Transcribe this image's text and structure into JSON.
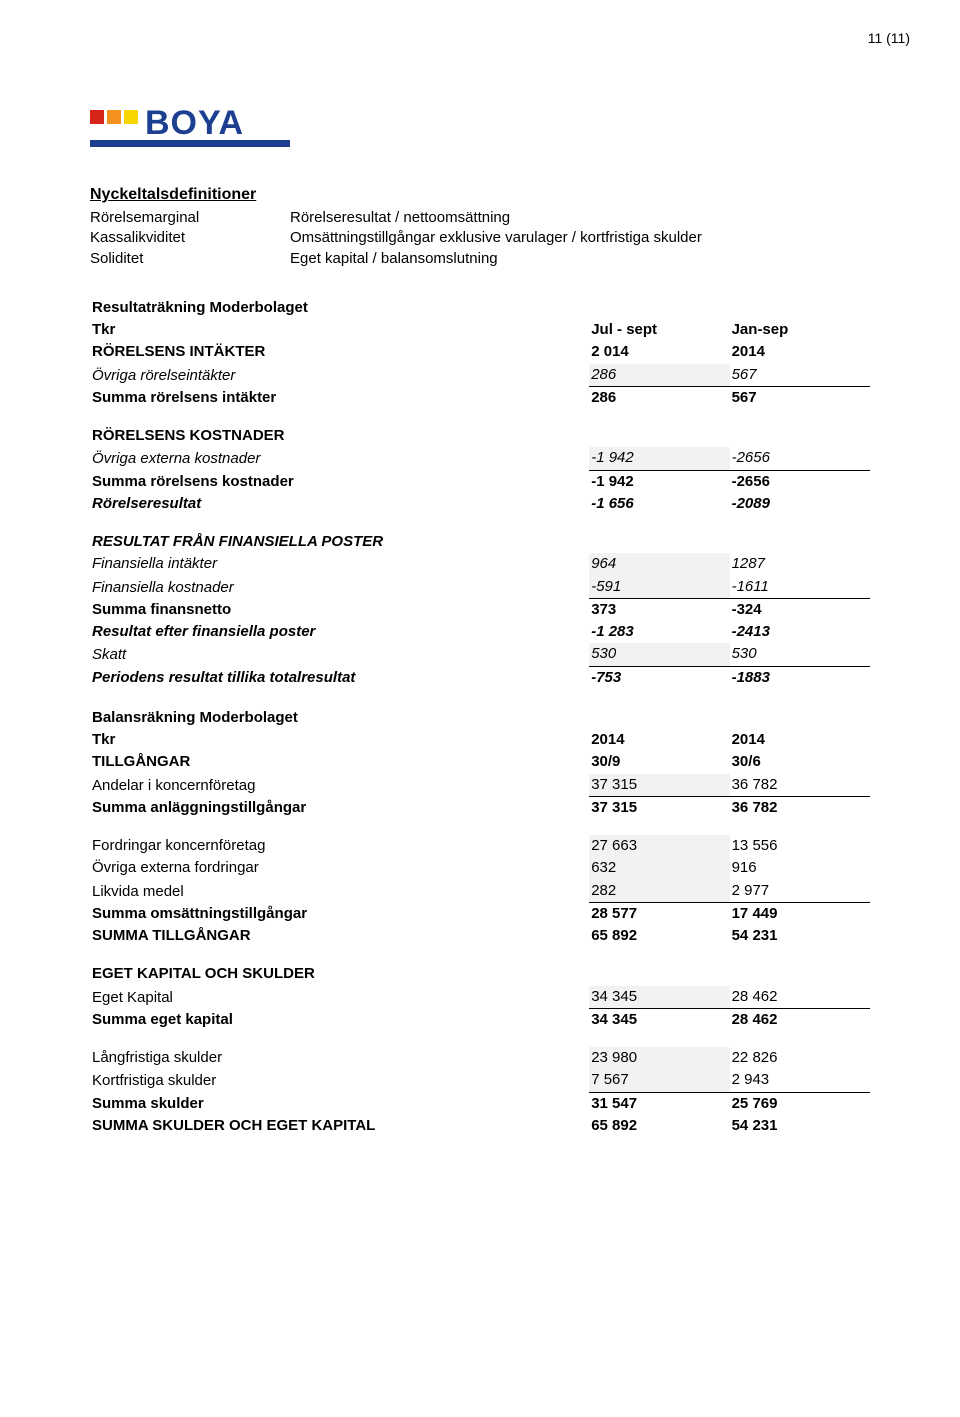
{
  "page_number": "11 (11)",
  "logo_colors": {
    "red": "#d62418",
    "orange": "#f5911e",
    "yellow": "#f8d400",
    "blue": "#1c3f8f"
  },
  "definitions": {
    "title": "Nyckeltalsdefinitioner",
    "rows": [
      {
        "label": "Rörelsemarginal",
        "value": "Rörelseresultat / nettoomsättning"
      },
      {
        "label": "Kassalikviditet",
        "value": "Omsättningstillgångar exklusive varulager / kortfristiga skulder"
      },
      {
        "label": "Soliditet",
        "value": "Eget kapital / balansomslutning"
      }
    ]
  },
  "income": {
    "header_title": "Resultaträkning Moderbolaget",
    "tkr": "Tkr",
    "col1": "Jul - sept",
    "col2": "Jan-sep",
    "rows": [
      {
        "label": "RÖRELSENS INTÄKTER",
        "v1": "2 014",
        "v2": "2014",
        "bold": true
      },
      {
        "label": "Övriga rörelseintäkter",
        "v1": "286",
        "v2": "567",
        "italic": true,
        "hl1": true,
        "uline1": true,
        "uline2": true
      },
      {
        "label": "Summa rörelsens intäkter",
        "v1": "286",
        "v2": "567",
        "bold": true
      },
      {
        "spacer": true
      },
      {
        "label": "RÖRELSENS KOSTNADER",
        "v1": "",
        "v2": "",
        "bold": true
      },
      {
        "label": "Övriga externa kostnader",
        "v1": "-1 942",
        "v2": "-2656",
        "italic": true,
        "hl1": true,
        "uline1": true,
        "uline2": true
      },
      {
        "label": "Summa rörelsens kostnader",
        "v1": "-1 942",
        "v2": "-2656",
        "bold": true
      },
      {
        "label": "Rörelseresultat",
        "v1": "-1 656",
        "v2": "-2089",
        "bold": true,
        "italic": true
      },
      {
        "spacer": true
      },
      {
        "label": "RESULTAT FRÅN FINANSIELLA POSTER",
        "v1": "",
        "v2": "",
        "bold": true,
        "italic": true
      },
      {
        "label": "Finansiella intäkter",
        "v1": "964",
        "v2": "1287",
        "italic": true,
        "hl1": true
      },
      {
        "label": "Finansiella kostnader",
        "v1": "-591",
        "v2": "-1611",
        "italic": true,
        "hl1": true,
        "uline1": true,
        "uline2": true
      },
      {
        "label": "Summa finansnetto",
        "v1": "373",
        "v2": "-324",
        "bold": true
      },
      {
        "label": "Resultat efter finansiella poster",
        "v1": "-1 283",
        "v2": "-2413",
        "bold": true,
        "italic": true
      },
      {
        "label": "Skatt",
        "v1": "530",
        "v2": "530",
        "italic": true,
        "hl1": true,
        "uline1": true,
        "uline2": true
      },
      {
        "label": "Periodens resultat tillika totalresultat",
        "v1": "-753",
        "v2": "-1883",
        "bold": true,
        "italic": true
      }
    ]
  },
  "balance": {
    "header_rows": [
      {
        "label": "Balansräkning Moderbolaget",
        "v1": "",
        "v2": "",
        "bold": true
      },
      {
        "label": "Tkr",
        "v1": "2014",
        "v2": "2014",
        "bold": true
      },
      {
        "label": "TILLGÅNGAR",
        "v1": "30/9",
        "v2": "30/6",
        "bold": true
      }
    ],
    "rows": [
      {
        "label": "Andelar i koncernföretag",
        "v1": "37 315",
        "v2": "36 782",
        "hl1": true,
        "uline1": true,
        "uline2": true
      },
      {
        "label": "Summa anläggningstillgångar",
        "v1": "37 315",
        "v2": "36 782",
        "bold": true
      },
      {
        "spacer": true
      },
      {
        "label": "Fordringar koncernföretag",
        "v1": "27 663",
        "v2": "13 556",
        "hl1": true
      },
      {
        "label": "Övriga externa fordringar",
        "v1": "632",
        "v2": "916",
        "hl1": true
      },
      {
        "label": "Likvida medel",
        "v1": "282",
        "v2": "2 977",
        "hl1": true,
        "uline1": true,
        "uline2": true
      },
      {
        "label": "Summa omsättningstillgångar",
        "v1": "28 577",
        "v2": "17 449",
        "bold": true
      },
      {
        "label": "SUMMA TILLGÅNGAR",
        "v1": "65 892",
        "v2": "54 231",
        "bold": true
      },
      {
        "spacer": true
      },
      {
        "label": "EGET KAPITAL OCH SKULDER",
        "v1": "",
        "v2": "",
        "bold": true
      },
      {
        "label": "Eget Kapital",
        "v1": "34 345",
        "v2": "28 462",
        "hl1": true,
        "uline1": true,
        "uline2": true
      },
      {
        "label": "Summa eget kapital",
        "v1": "34 345",
        "v2": "28 462",
        "bold": true
      },
      {
        "spacer": true
      },
      {
        "label": "Långfristiga skulder",
        "v1": "23 980",
        "v2": "22 826",
        "hl1": true
      },
      {
        "label": "Kortfristiga skulder",
        "v1": "7 567",
        "v2": "2 943",
        "hl1": true,
        "uline1": true,
        "uline2": true
      },
      {
        "label": "Summa skulder",
        "v1": "31 547",
        "v2": "25 769",
        "bold": true
      },
      {
        "label": "SUMMA SKULDER OCH EGET KAPITAL",
        "v1": "65 892",
        "v2": "54 231",
        "bold": true
      }
    ]
  }
}
